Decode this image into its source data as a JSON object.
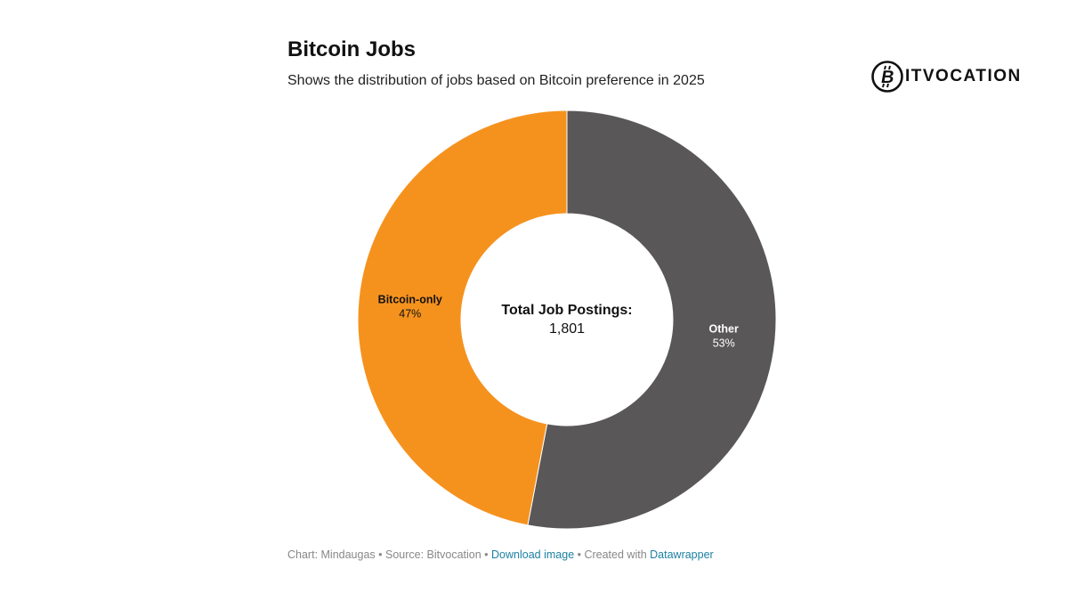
{
  "header": {
    "title": "Bitcoin Jobs",
    "subtitle": "Shows the distribution of jobs based on Bitcoin preference in 2025"
  },
  "logo": {
    "text": "BITVOCATION",
    "icon": "bitcoin-circle-icon",
    "text_tail": "ITVOCATION"
  },
  "chart_data": {
    "type": "pie",
    "variant": "donut",
    "title": "Bitcoin Jobs",
    "subtitle": "Shows the distribution of jobs based on Bitcoin preference in 2025",
    "slices": [
      {
        "label": "Other",
        "value": 53,
        "value_label": "53%",
        "color": "#595757",
        "text_color": "#ffffff"
      },
      {
        "label": "Bitcoin-only",
        "value": 47,
        "value_label": "47%",
        "color": "#f5921e",
        "text_color": "#111111"
      }
    ],
    "center": {
      "label": "Total Job Postings:",
      "value": "1,801"
    }
  },
  "footer": {
    "chart_prefix": "Chart: Mindaugas",
    "separator": " • ",
    "source": "Source: Bitvocation",
    "download_label": "Download image",
    "created_prefix": "Created with",
    "datawrapper_label": "Datawrapper"
  }
}
